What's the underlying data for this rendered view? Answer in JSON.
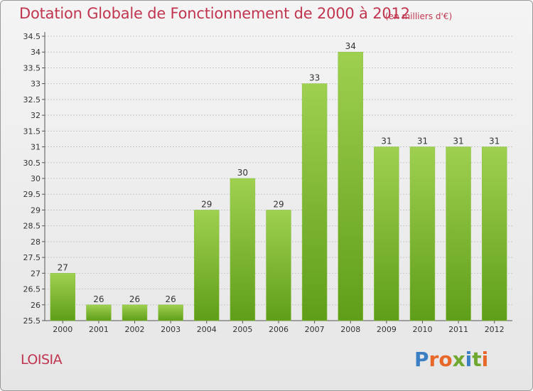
{
  "header": {
    "title": "Dotation Globale de Fonctionnement de 2000 à 2012",
    "subtitle": "(en milliers d'€)"
  },
  "footer": {
    "commune": "LOISIA",
    "brand": "Proxiti",
    "brand_colors": [
      "#3b7fc4",
      "#e8682a",
      "#e8682a",
      "#6fa82e",
      "#3b7fc4",
      "#6fa82e",
      "#e8682a"
    ]
  },
  "colors": {
    "title": "#c0354f",
    "bar_light": "#9fd050",
    "bar_dark": "#5f9e19",
    "grid": "#c8c8c8",
    "text": "#333333"
  },
  "chart_data": {
    "type": "bar",
    "categories": [
      "2000",
      "2001",
      "2002",
      "2003",
      "2004",
      "2005",
      "2006",
      "2007",
      "2008",
      "2009",
      "2010",
      "2011",
      "2012"
    ],
    "values": [
      27,
      26,
      26,
      26,
      29,
      30,
      29,
      33,
      34,
      31,
      31,
      31,
      31
    ],
    "data_labels": [
      "27",
      "26",
      "26",
      "26",
      "29",
      "30",
      "29",
      "33",
      "34",
      "31",
      "31",
      "31",
      "31"
    ],
    "ylim": [
      25.5,
      34.5
    ],
    "yticks": [
      "25.5",
      "26",
      "26.5",
      "27",
      "27.5",
      "28",
      "28.5",
      "29",
      "29.5",
      "30",
      "30.5",
      "31",
      "31.5",
      "32",
      "32.5",
      "33",
      "33.5",
      "34",
      "34.5"
    ],
    "grid": true,
    "title": "Dotation Globale de Fonctionnement de 2000 à 2012",
    "xlabel": "",
    "ylabel": ""
  }
}
